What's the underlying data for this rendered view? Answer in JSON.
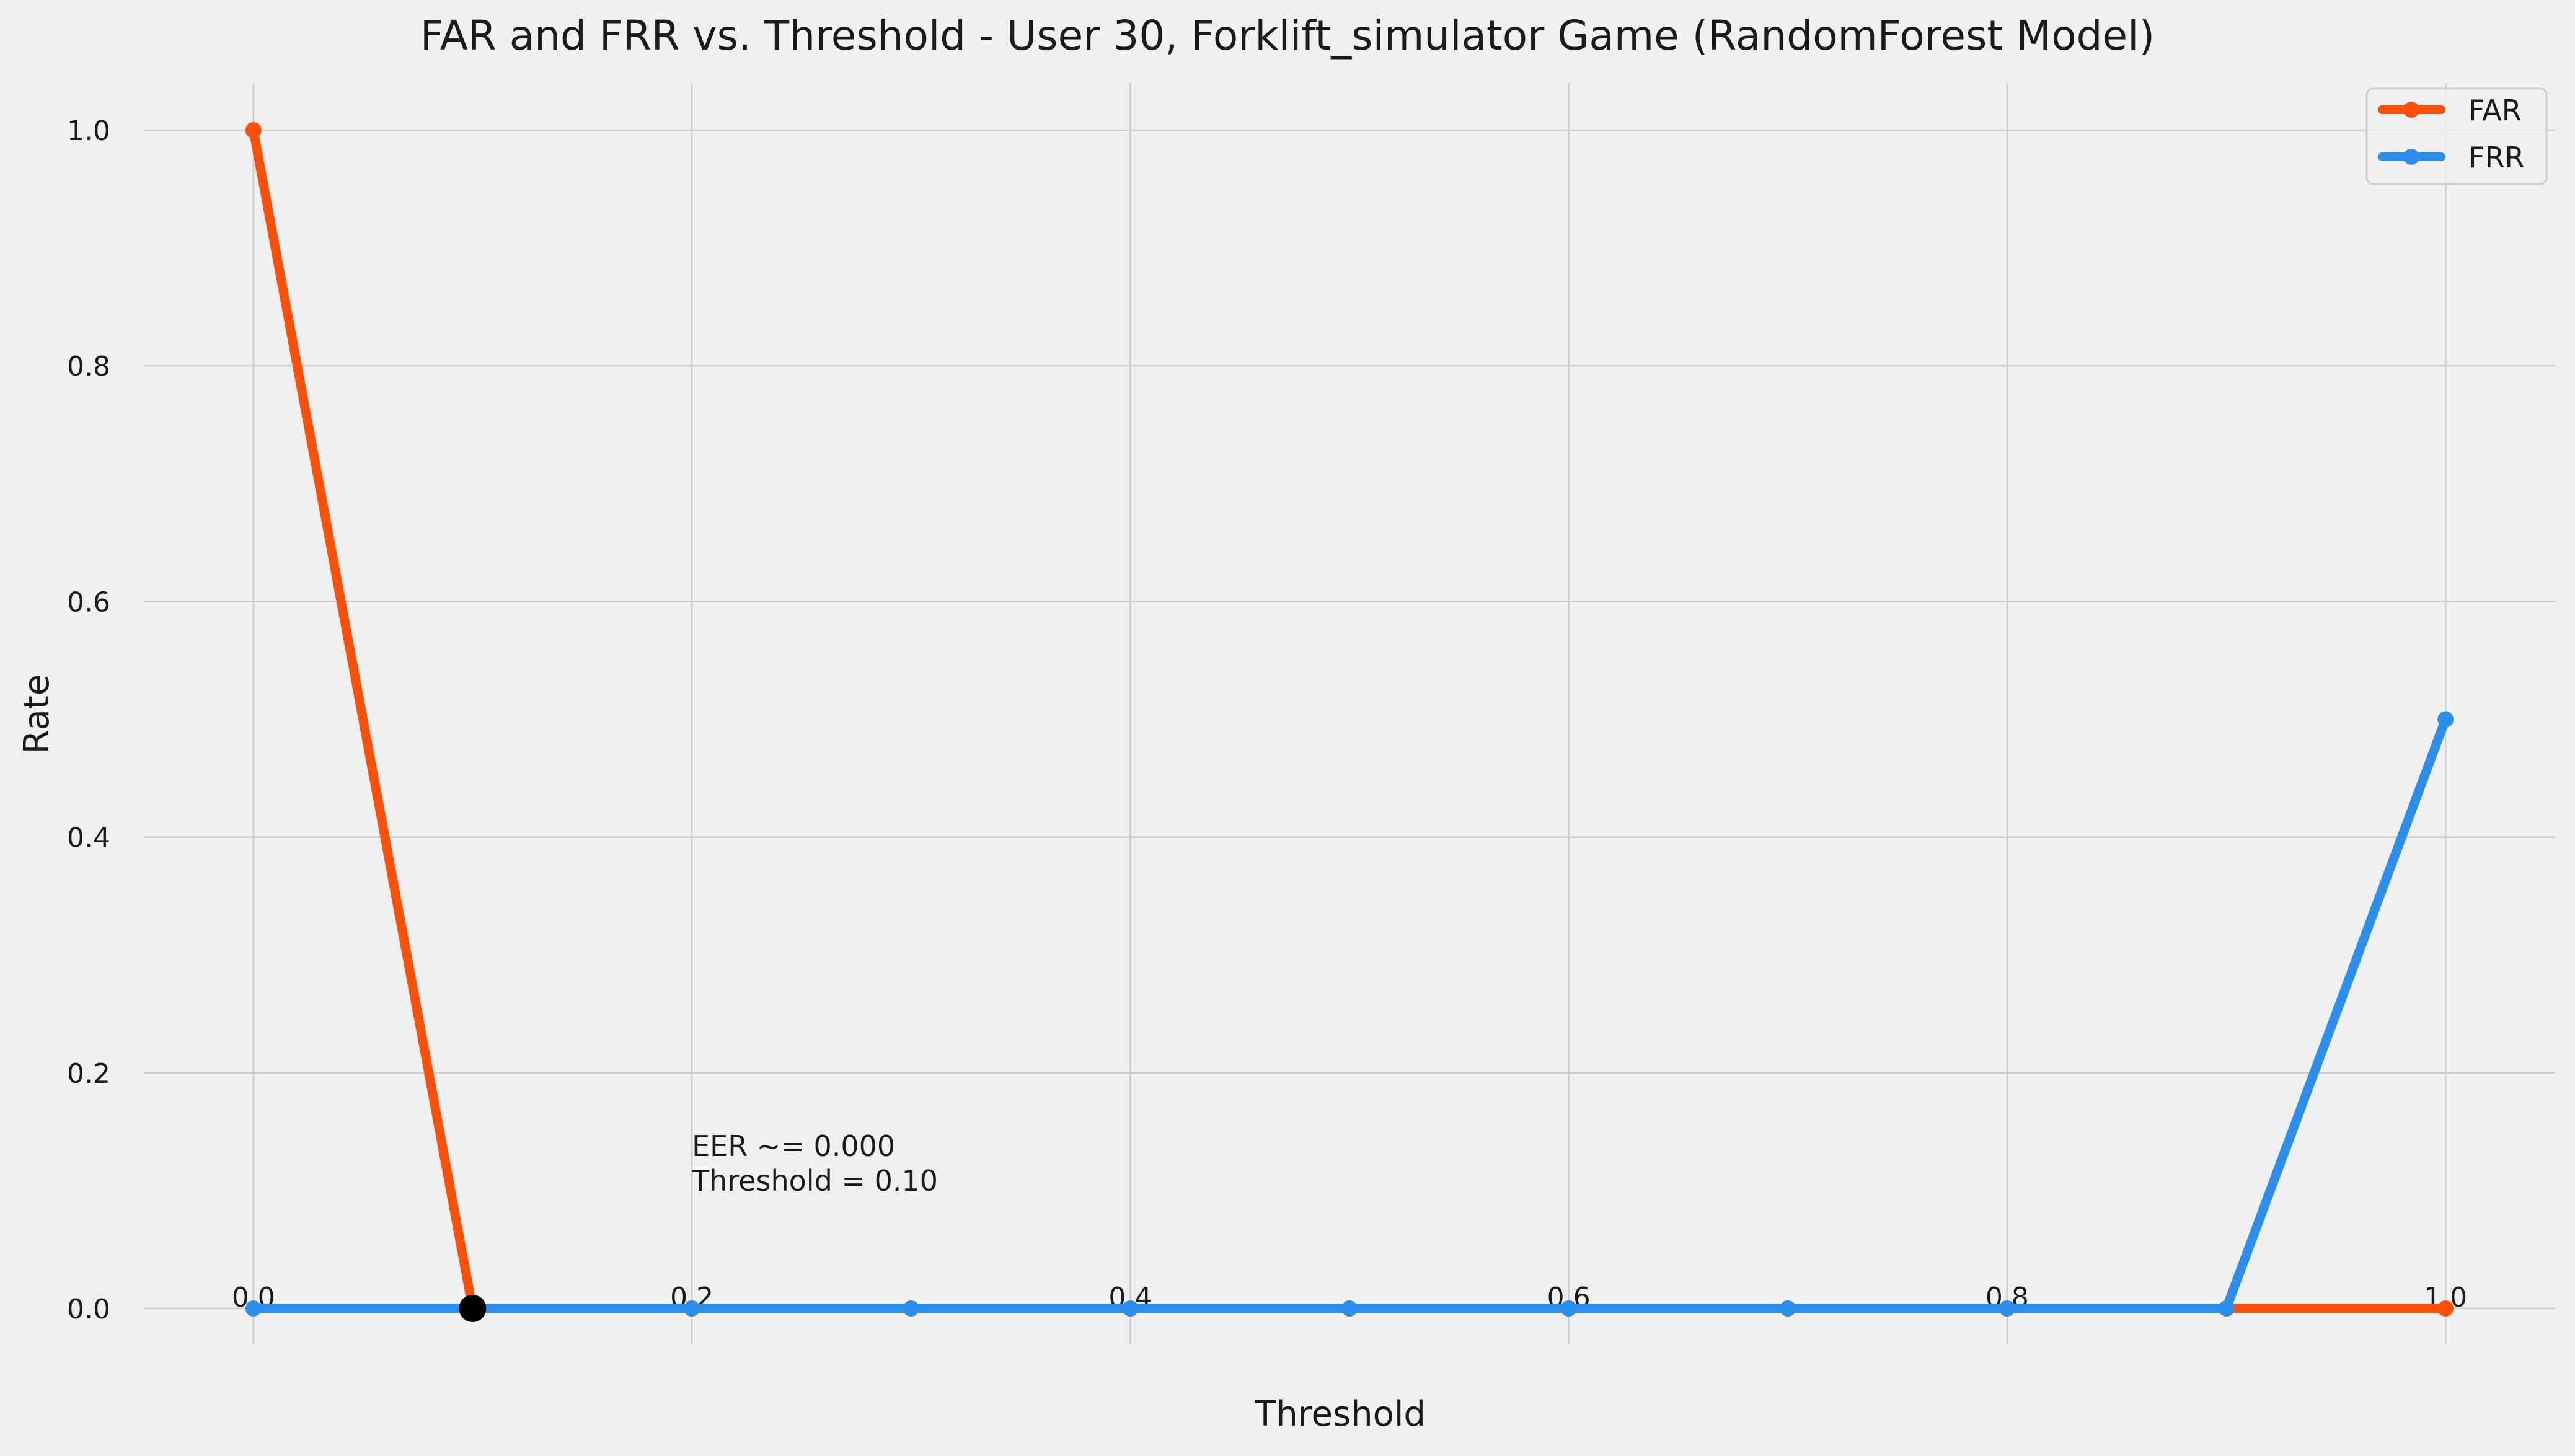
{
  "chart_data": {
    "type": "line",
    "title": "FAR and FRR vs. Threshold - User 30, Forklift_simulator Game (RandomForest Model)",
    "xlabel": "Threshold",
    "ylabel": "Rate",
    "xlim": [
      -0.05,
      1.05
    ],
    "ylim": [
      -0.03,
      1.04
    ],
    "grid": true,
    "legend_position": "top-right",
    "x": [
      0.0,
      0.1,
      0.2,
      0.3,
      0.4,
      0.5,
      0.6,
      0.7,
      0.8,
      0.9,
      1.0
    ],
    "xticks": [
      0.0,
      0.2,
      0.4,
      0.6,
      0.8,
      1.0
    ],
    "xtick_labels": [
      "0.0",
      "0.2",
      "0.4",
      "0.6",
      "0.8",
      "1.0"
    ],
    "yticks": [
      0.0,
      0.2,
      0.4,
      0.6,
      0.8,
      1.0
    ],
    "ytick_labels": [
      "0.0",
      "0.2",
      "0.4",
      "0.6",
      "0.8",
      "1.0"
    ],
    "series": [
      {
        "name": "FAR",
        "color": "#fc4f08",
        "values": [
          1.0,
          0.0,
          0.0,
          0.0,
          0.0,
          0.0,
          0.0,
          0.0,
          0.0,
          0.0,
          0.0
        ]
      },
      {
        "name": "FRR",
        "color": "#2b8feb",
        "values": [
          0.0,
          0.0,
          0.0,
          0.0,
          0.0,
          0.0,
          0.0,
          0.0,
          0.0,
          0.0,
          0.5
        ]
      }
    ],
    "eer_point": {
      "x": 0.1,
      "y": 0.0,
      "color": "#000000"
    },
    "annotation": {
      "lines": [
        "EER ~= 0.000",
        "Threshold = 0.10"
      ],
      "x": 0.2,
      "y": 0.1
    }
  }
}
